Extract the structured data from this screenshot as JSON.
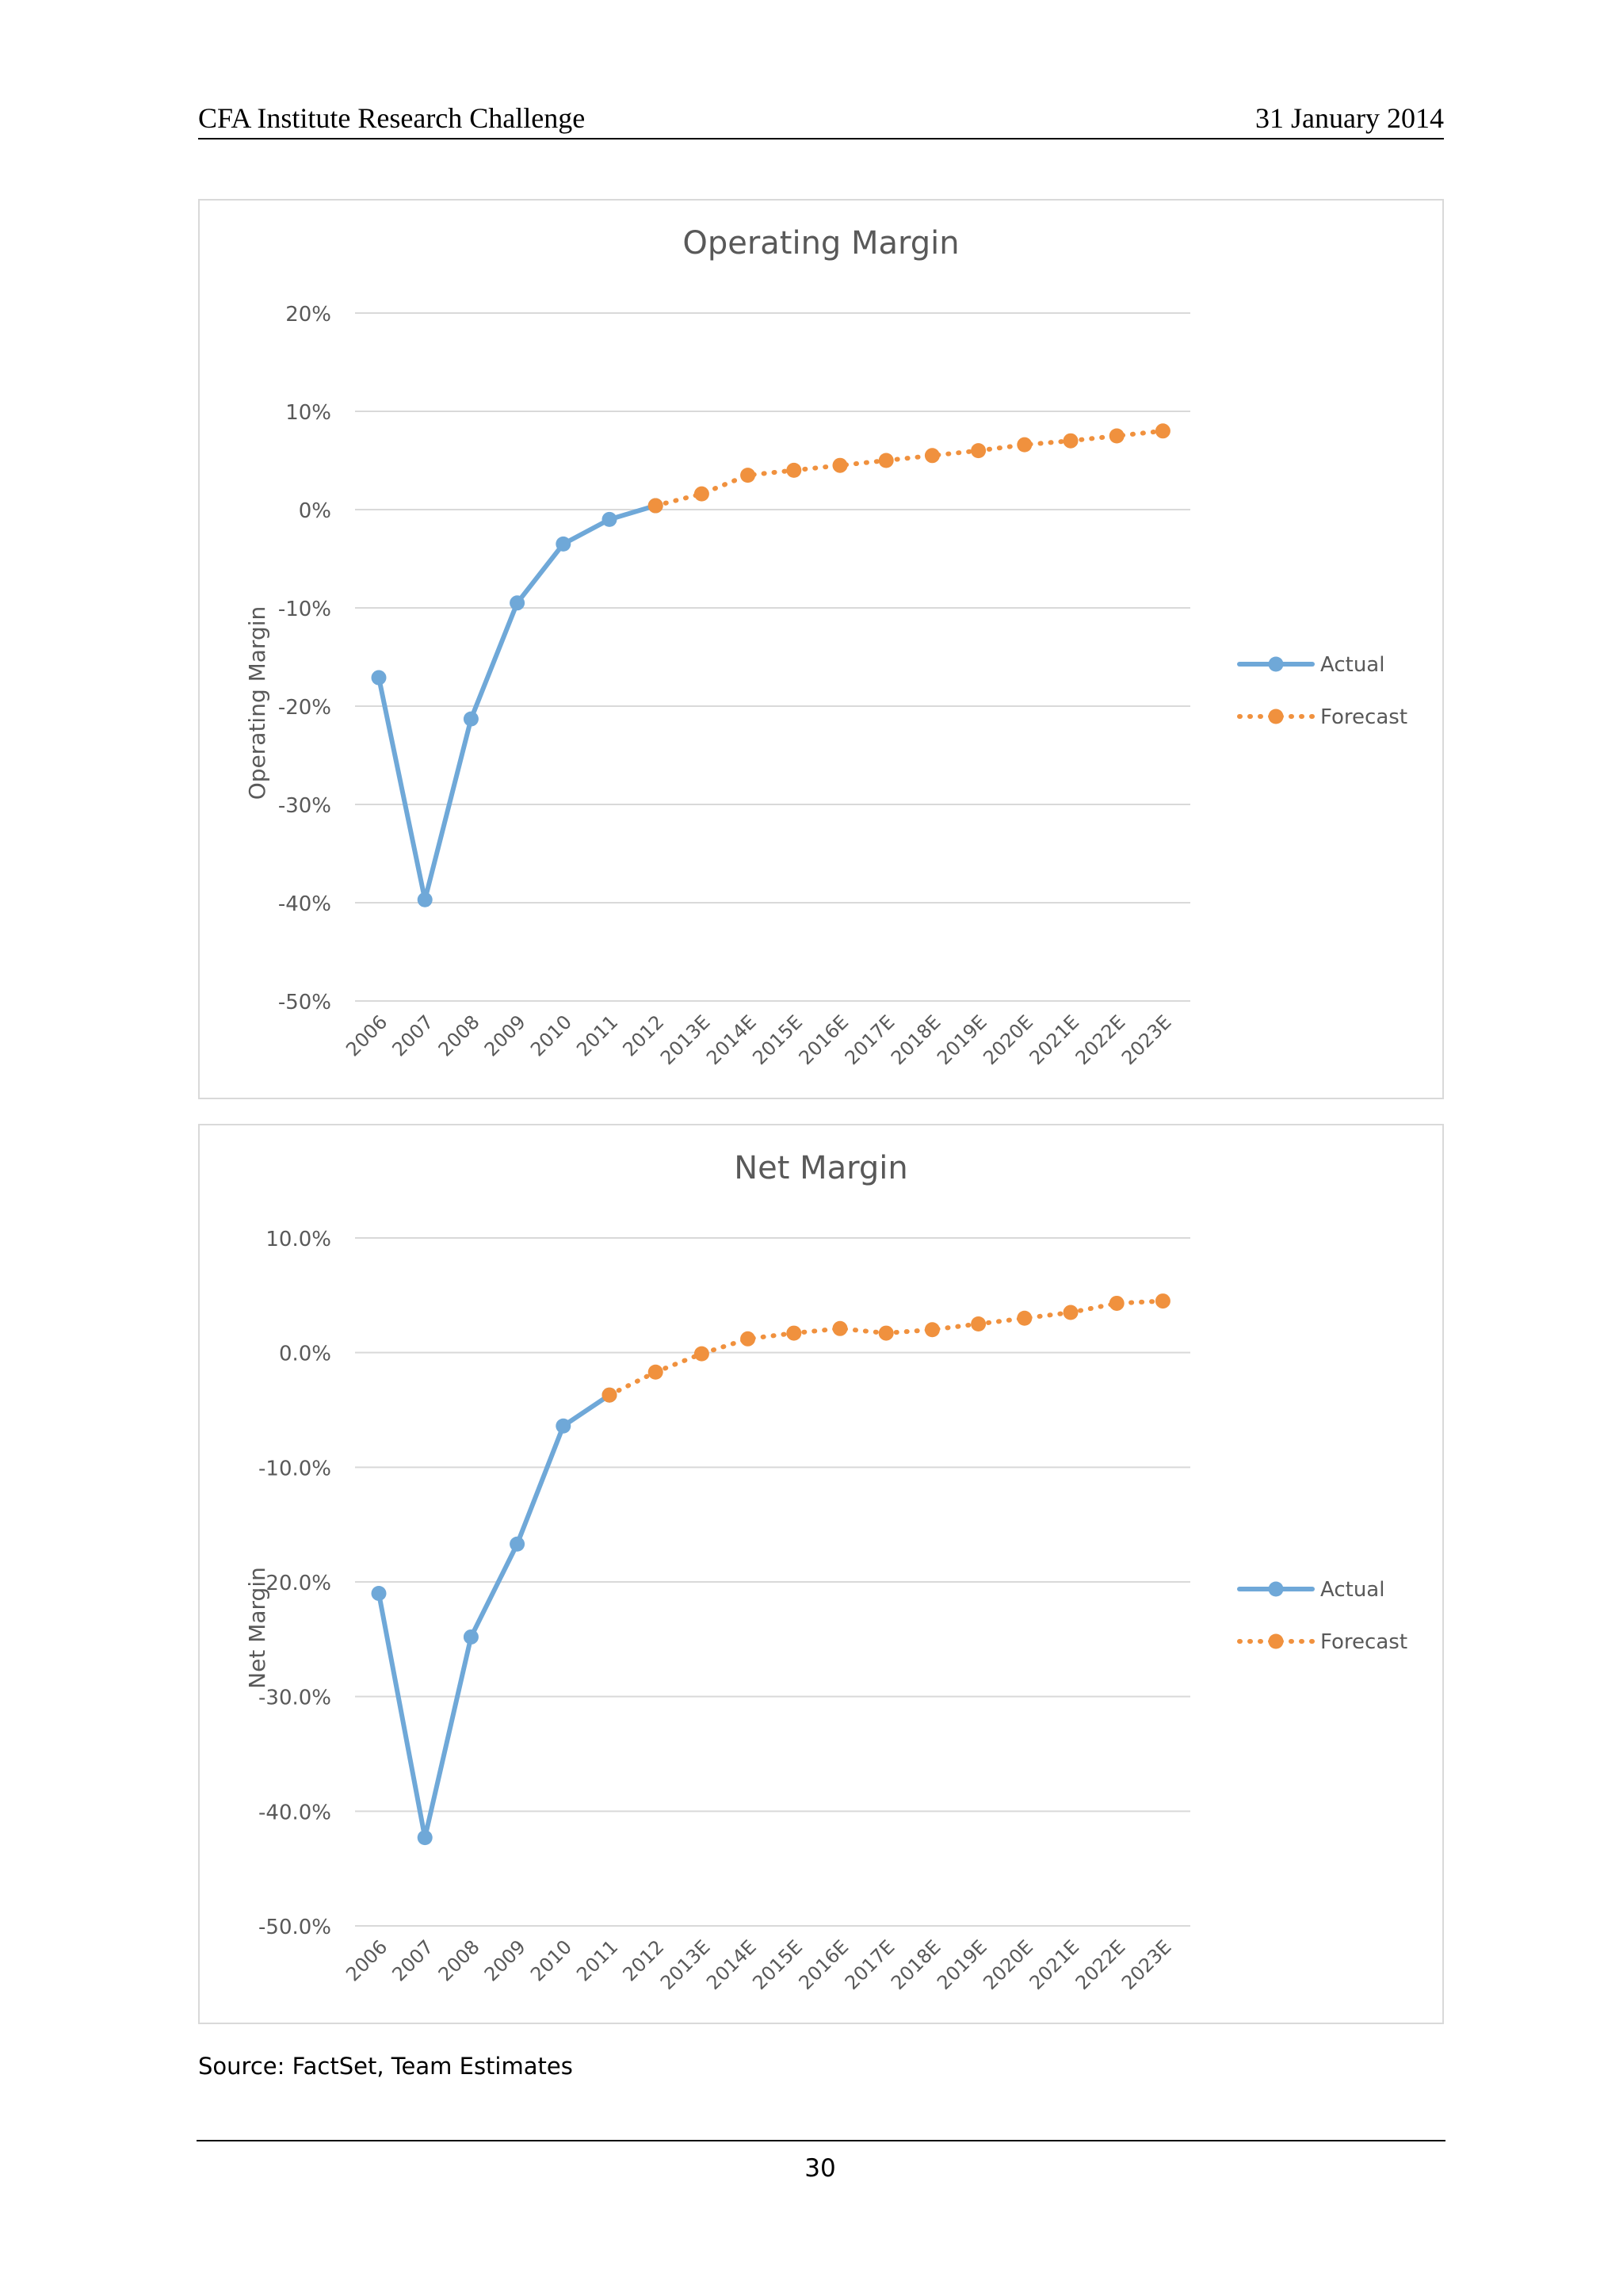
{
  "header": {
    "left": "CFA Institute Research Challenge",
    "right": "31 January 2014"
  },
  "footer": {
    "source": "Source: FactSet, Team Estimates",
    "page_number": "30"
  },
  "colors": {
    "actual": "#6fa8d8",
    "forecast": "#f0913e",
    "grid": "#d9d9d9",
    "text": "#595959"
  },
  "chart_data": [
    {
      "type": "line",
      "title": "Operating Margin",
      "ylabel": "Operating Margin",
      "xlabel": "",
      "categories": [
        "2006",
        "2007",
        "2008",
        "2009",
        "2010",
        "2011",
        "2012",
        "2013E",
        "2014E",
        "2015E",
        "2016E",
        "2017E",
        "2018E",
        "2019E",
        "2020E",
        "2021E",
        "2022E",
        "2023E"
      ],
      "yticks": [
        "20%",
        "10%",
        "0%",
        "-10%",
        "-20%",
        "-30%",
        "-40%",
        "-50%"
      ],
      "ylim": [
        -50,
        20
      ],
      "legend": "right",
      "grid": true,
      "series": [
        {
          "name": "Actual",
          "style": "solid",
          "values": [
            -17.1,
            -39.7,
            -21.3,
            -9.5,
            -3.5,
            -1.0,
            0.4,
            null,
            null,
            null,
            null,
            null,
            null,
            null,
            null,
            null,
            null,
            null
          ]
        },
        {
          "name": "Forecast",
          "style": "dotted",
          "values": [
            null,
            null,
            null,
            null,
            null,
            null,
            0.4,
            1.6,
            3.5,
            4.0,
            4.5,
            5.0,
            5.5,
            6.0,
            6.6,
            7.0,
            7.5,
            8.0
          ]
        }
      ]
    },
    {
      "type": "line",
      "title": "Net Margin",
      "ylabel": "Net Margin",
      "xlabel": "",
      "categories": [
        "2006",
        "2007",
        "2008",
        "2009",
        "2010",
        "2011",
        "2012",
        "2013E",
        "2014E",
        "2015E",
        "2016E",
        "2017E",
        "2018E",
        "2019E",
        "2020E",
        "2021E",
        "2022E",
        "2023E"
      ],
      "yticks": [
        "10.0%",
        "0.0%",
        "-10.0%",
        "-20.0%",
        "-30.0%",
        "-40.0%",
        "-50.0%"
      ],
      "ylim": [
        -50,
        10
      ],
      "legend": "right",
      "grid": true,
      "series": [
        {
          "name": "Actual",
          "style": "solid",
          "values": [
            -21.0,
            -42.3,
            -24.8,
            -16.7,
            -6.4,
            -3.7,
            null,
            null,
            null,
            null,
            null,
            null,
            null,
            null,
            null,
            null,
            null,
            null
          ]
        },
        {
          "name": "Forecast",
          "style": "dotted",
          "values": [
            null,
            null,
            null,
            null,
            null,
            -3.7,
            -1.7,
            -0.1,
            1.2,
            1.7,
            2.1,
            1.7,
            2.0,
            2.5,
            3.0,
            3.5,
            4.3,
            4.5
          ]
        }
      ]
    }
  ]
}
